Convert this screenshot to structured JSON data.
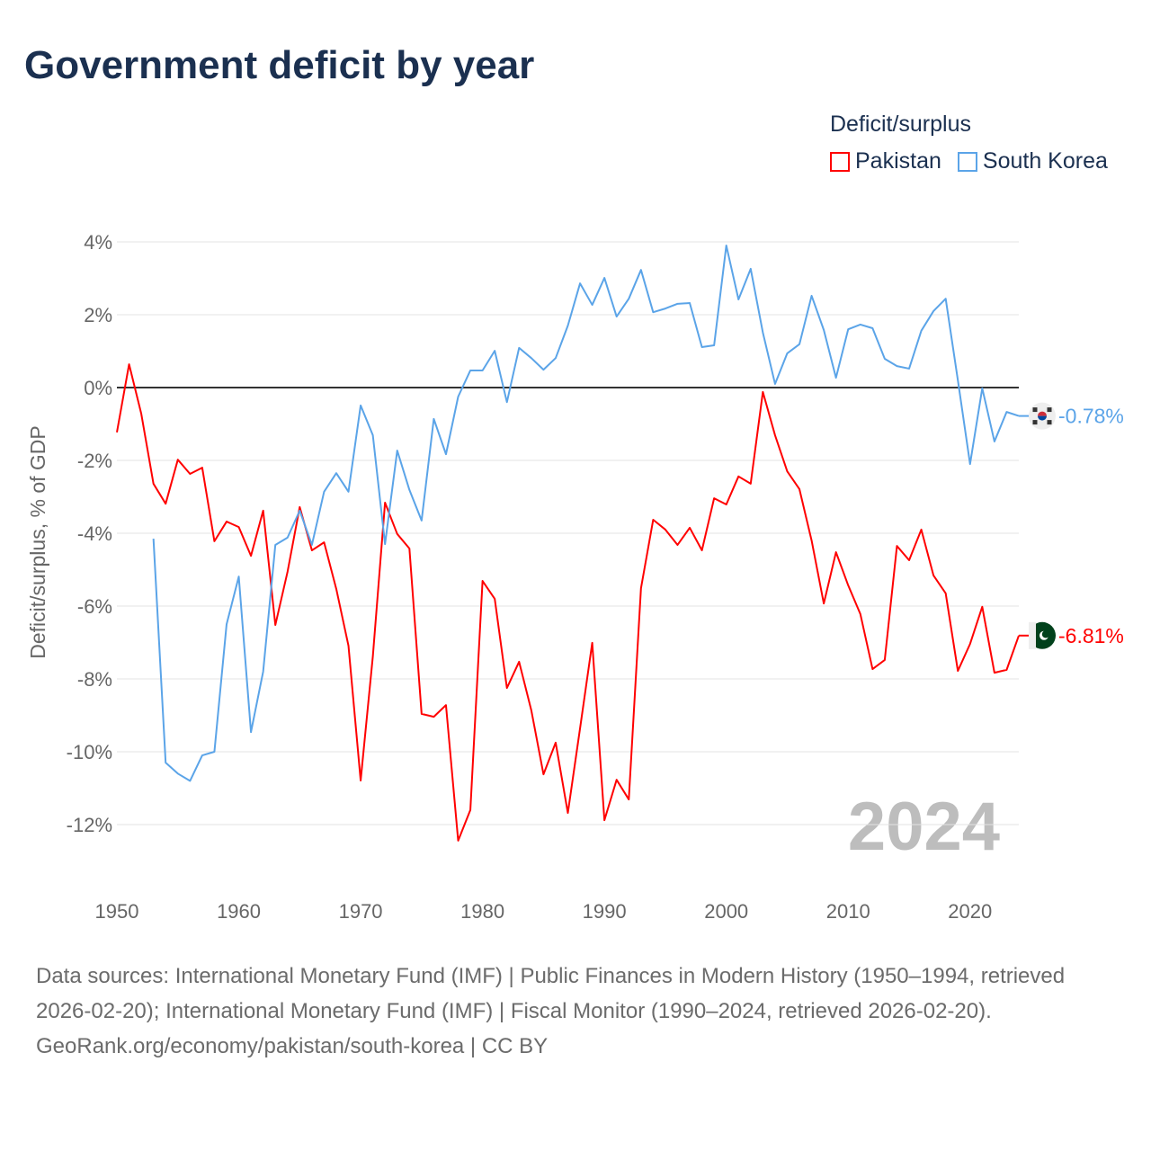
{
  "chart_data": {
    "type": "line",
    "title": "Government deficit by year",
    "ylabel": "Deficit/surplus, % of GDP",
    "xlabel": "",
    "xlim": [
      1950,
      2024
    ],
    "ylim": [
      -12,
      4
    ],
    "x_ticks": [
      1950,
      1960,
      1970,
      1980,
      1990,
      2000,
      2010,
      2020
    ],
    "x_tick_labels": [
      "1950",
      "1960",
      "1970",
      "1980",
      "1990",
      "2000",
      "2010",
      "2020"
    ],
    "y_ticks": [
      4,
      2,
      0,
      -2,
      -4,
      -6,
      -8,
      -10,
      -12
    ],
    "y_tick_labels": [
      "4%",
      "2%",
      "0%",
      "-2%",
      "-4%",
      "-6%",
      "-8%",
      "-10%",
      "-12%"
    ],
    "grid": true,
    "legend_title": "Deficit/surplus",
    "legend_placement": "top-right",
    "year_watermark": "2024",
    "series": [
      {
        "name": "Pakistan",
        "color": "#ff0000",
        "end_label": "-6.81%",
        "start_year": 1950,
        "values": [
          -1.23,
          0.64,
          -0.72,
          -2.64,
          -3.19,
          -1.98,
          -2.37,
          -2.2,
          -4.22,
          -3.68,
          -3.83,
          -4.62,
          -3.38,
          -6.52,
          -5.06,
          -3.28,
          -4.47,
          -4.25,
          -5.53,
          -7.09,
          -10.79,
          -7.38,
          -3.16,
          -4.02,
          -4.42,
          -8.96,
          -9.04,
          -8.72,
          -12.44,
          -11.6,
          -5.31,
          -5.8,
          -8.25,
          -7.53,
          -8.86,
          -10.62,
          -9.75,
          -11.68,
          -9.36,
          -7.01,
          -11.88,
          -10.77,
          -11.31,
          -5.51,
          -3.63,
          -3.9,
          -4.32,
          -3.85,
          -4.47,
          -3.04,
          -3.21,
          -2.44,
          -2.64,
          -0.12,
          -1.31,
          -2.3,
          -2.79,
          -4.2,
          -5.93,
          -4.52,
          -5.43,
          -6.22,
          -7.73,
          -7.48,
          -4.35,
          -4.74,
          -3.9,
          -5.16,
          -5.65,
          -7.78,
          -7.04,
          -6.02,
          -7.83,
          -7.75,
          -6.81
        ]
      },
      {
        "name": "South Korea",
        "color": "#5ba4e8",
        "end_label": "-0.78%",
        "start_year": 1953,
        "values": [
          -4.15,
          -10.3,
          -10.6,
          -10.8,
          -10.1,
          -10.0,
          -6.5,
          -5.19,
          -9.46,
          -7.8,
          -4.32,
          -4.12,
          -3.38,
          -4.32,
          -2.86,
          -2.35,
          -2.86,
          -0.49,
          -1.31,
          -4.3,
          -1.73,
          -2.81,
          -3.65,
          -0.86,
          -1.83,
          -0.25,
          0.47,
          0.47,
          1.01,
          -0.4,
          1.09,
          0.81,
          0.49,
          0.81,
          1.7,
          2.86,
          2.27,
          3.01,
          1.95,
          2.44,
          3.23,
          2.07,
          2.17,
          2.3,
          2.32,
          1.11,
          1.16,
          3.9,
          2.42,
          3.26,
          1.51,
          0.1,
          0.94,
          1.19,
          2.52,
          1.58,
          0.27,
          1.6,
          1.73,
          1.63,
          0.79,
          0.59,
          0.52,
          1.56,
          2.1,
          2.44,
          0.2,
          -2.1,
          -0.02,
          -1.48,
          -0.67,
          -0.78
        ]
      }
    ]
  },
  "footer": {
    "sources": "Data sources: International Monetary Fund (IMF) | Public Finances in Modern History (1950–1994, retrieved 2026-02-20); International Monetary Fund (IMF) | Fiscal Monitor (1990–2024, retrieved 2026-02-20).",
    "attribution": "GeoRank.org/economy/pakistan/south-korea | CC BY"
  }
}
